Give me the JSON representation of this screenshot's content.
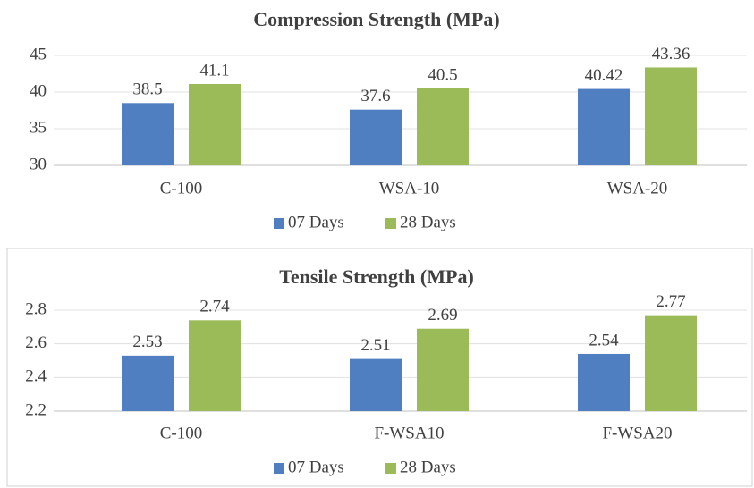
{
  "chart_data": [
    {
      "type": "bar",
      "title": "Compression Strength (MPa)",
      "categories": [
        "C-100",
        "WSA-10",
        "WSA-20"
      ],
      "series": [
        {
          "name": "07 Days",
          "color": "#4f7ec1",
          "values": [
            38.5,
            37.6,
            40.42
          ]
        },
        {
          "name": "28 Days",
          "color": "#9bbb59",
          "values": [
            41.1,
            40.5,
            43.36
          ]
        }
      ],
      "ylim": [
        30,
        45
      ],
      "yticks": [
        30,
        35,
        40,
        45
      ],
      "grid": true,
      "legend": "bottom"
    },
    {
      "type": "bar",
      "title": "Tensile Strength (MPa)",
      "categories": [
        "C-100",
        "F-WSA10",
        "F-WSA20"
      ],
      "series": [
        {
          "name": "07 Days",
          "color": "#4f7ec1",
          "values": [
            2.53,
            2.51,
            2.54
          ]
        },
        {
          "name": "28 Days",
          "color": "#9bbb59",
          "values": [
            2.74,
            2.69,
            2.77
          ]
        }
      ],
      "ylim": [
        2.2,
        2.8
      ],
      "yticks": [
        2.2,
        2.4,
        2.6,
        2.8
      ],
      "grid": true,
      "legend": "bottom"
    }
  ]
}
